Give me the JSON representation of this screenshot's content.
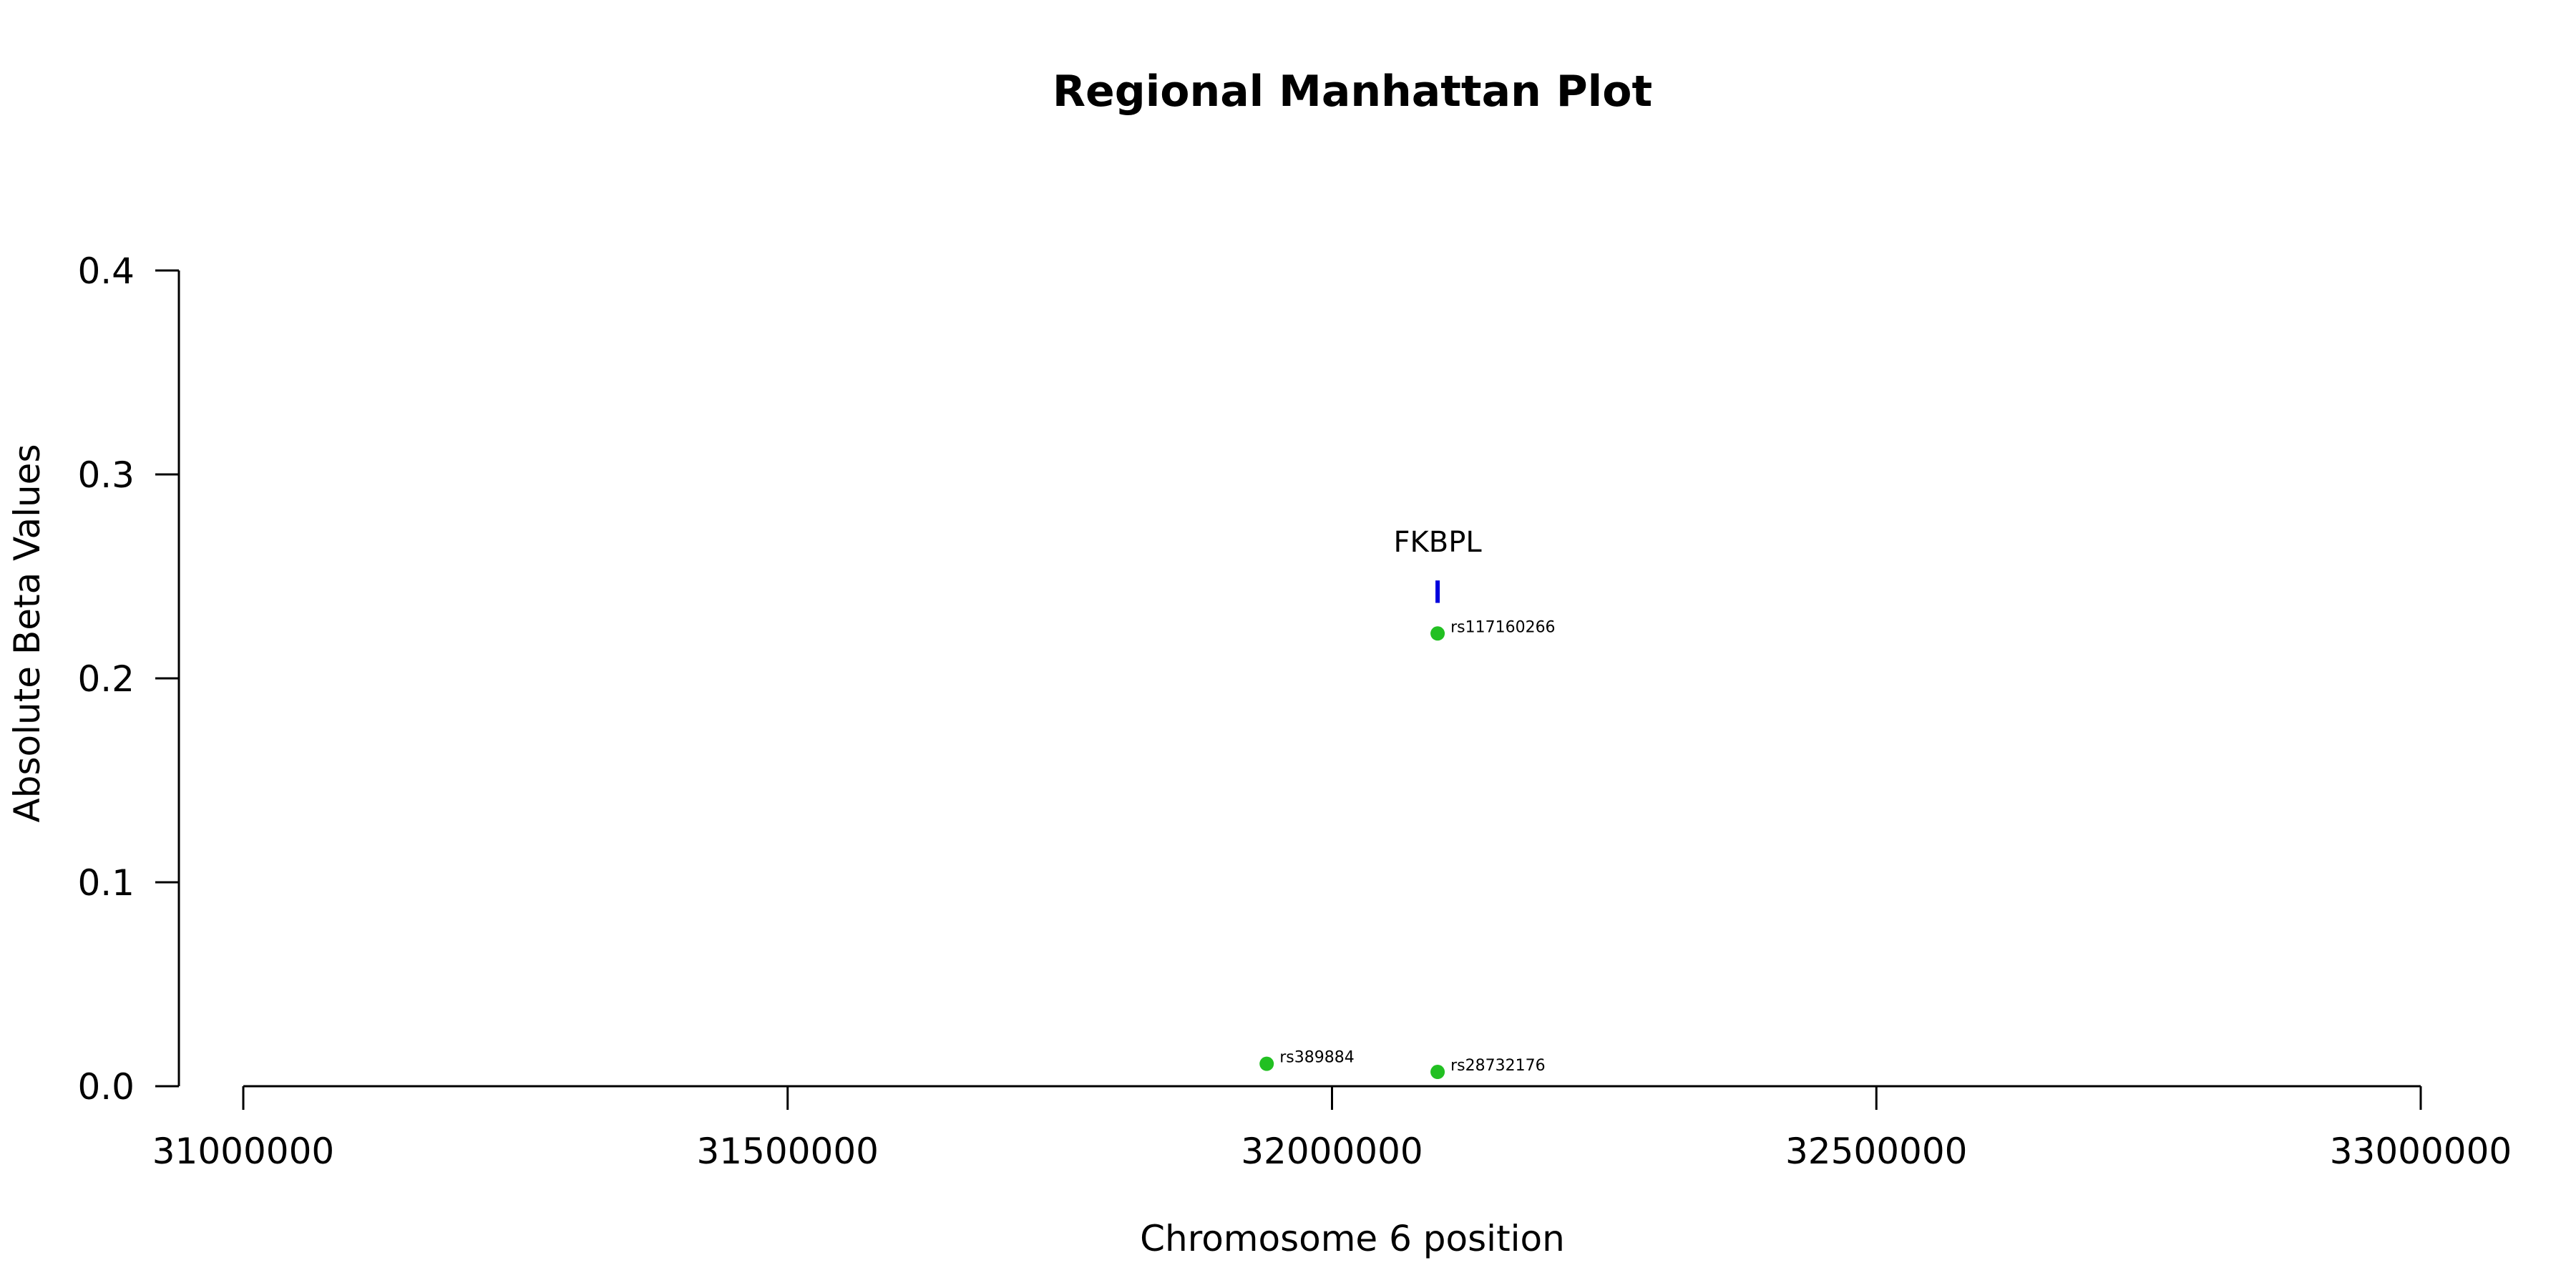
{
  "chart_data": {
    "type": "scatter",
    "title": "Regional Manhattan Plot",
    "xlabel": "Chromosome 6 position",
    "ylabel": "Absolute Beta Values",
    "xlim": [
      31000000,
      33000000
    ],
    "ylim": [
      0,
      0.4
    ],
    "xticks": [
      31000000,
      31500000,
      32000000,
      32500000,
      33000000
    ],
    "xtick_labels": [
      "31000000",
      "31500000",
      "32000000",
      "32500000",
      "33000000"
    ],
    "yticks": [
      0,
      0.1,
      0.2,
      0.3,
      0.4
    ],
    "ytick_labels": [
      "0.0",
      "0.1",
      "0.2",
      "0.3",
      "0.4"
    ],
    "grid": false,
    "point_color": "#22c022",
    "gene_color": "#0000dd",
    "points": [
      {
        "label": "rs389884",
        "x": 31940000,
        "y": 0.011
      },
      {
        "label": "rs117160266",
        "x": 32097000,
        "y": 0.222
      },
      {
        "label": "rs28732176",
        "x": 32097000,
        "y": 0.007
      }
    ],
    "genes": [
      {
        "label": "FKBPL",
        "x": 32097000,
        "y_low": 0.237,
        "y_high": 0.248
      }
    ]
  }
}
